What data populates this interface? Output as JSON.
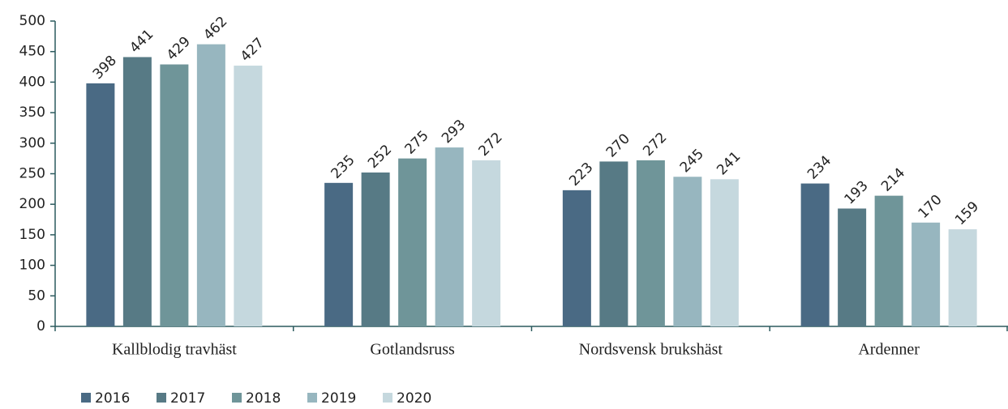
{
  "chart_data": {
    "type": "bar",
    "categories": [
      "Kallblodig travhäst",
      "Gotlandsruss",
      "Nordsvensk brukshäst",
      "Ardenner"
    ],
    "series": [
      {
        "name": "2016",
        "color": "#4a6a84",
        "values": [
          398,
          235,
          223,
          234
        ]
      },
      {
        "name": "2017",
        "color": "#577a85",
        "values": [
          441,
          252,
          270,
          193
        ]
      },
      {
        "name": "2018",
        "color": "#6f9599",
        "values": [
          429,
          275,
          272,
          214
        ]
      },
      {
        "name": "2019",
        "color": "#97b6bf",
        "values": [
          462,
          293,
          245,
          170
        ]
      },
      {
        "name": "2020",
        "color": "#c5d8de",
        "values": [
          427,
          272,
          241,
          159
        ]
      }
    ],
    "ylim": [
      0,
      500
    ],
    "yticks": [
      0,
      50,
      100,
      150,
      200,
      250,
      300,
      350,
      400,
      450,
      500
    ],
    "grid": false,
    "legend": "bottom-left"
  }
}
